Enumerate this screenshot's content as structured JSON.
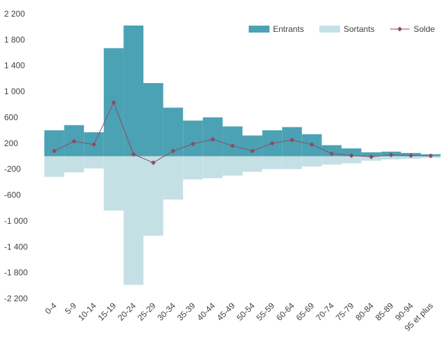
{
  "chart_data": {
    "type": "bar",
    "title": "",
    "xlabel": "",
    "ylabel": "",
    "categories": [
      "0-4",
      "5-9",
      "10-14",
      "15-19",
      "20-24",
      "25-29",
      "30-34",
      "35-39",
      "40-44",
      "45-49",
      "50-54",
      "55-59",
      "60-64",
      "65-69",
      "70-74",
      "75-79",
      "80-84",
      "85-89",
      "90-94",
      "95 et plus"
    ],
    "series": [
      {
        "name": "Entrants",
        "type": "bar",
        "color": "#4BA2B4",
        "values": [
          400,
          480,
          370,
          1670,
          2020,
          1130,
          750,
          550,
          600,
          460,
          320,
          400,
          450,
          340,
          170,
          120,
          60,
          70,
          50,
          30
        ]
      },
      {
        "name": "Sortants",
        "type": "bar",
        "color": "#C5E0E5",
        "values": [
          -320,
          -250,
          -190,
          -840,
          -1990,
          -1230,
          -670,
          -360,
          -340,
          -300,
          -240,
          -200,
          -200,
          -160,
          -130,
          -110,
          -70,
          -50,
          -40,
          -25
        ]
      },
      {
        "name": "Solde",
        "type": "line",
        "color": "#8E4A64",
        "values": [
          80,
          230,
          180,
          830,
          30,
          -100,
          80,
          190,
          260,
          160,
          80,
          200,
          250,
          180,
          40,
          10,
          -10,
          20,
          10,
          5
        ]
      }
    ],
    "ylim": [
      -2200,
      2200
    ],
    "yticks": [
      2200,
      1800,
      1400,
      1000,
      600,
      200,
      -200,
      -600,
      -1000,
      -1400,
      -1800,
      -2200
    ],
    "ytick_labels": [
      "2 200",
      "1 800",
      "1 400",
      "1 000",
      "600",
      "200",
      "-200",
      "-600",
      "-1 000",
      "-1 400",
      "-1 800",
      "-2 200"
    ],
    "grid": false,
    "legend_position": "top-right"
  }
}
